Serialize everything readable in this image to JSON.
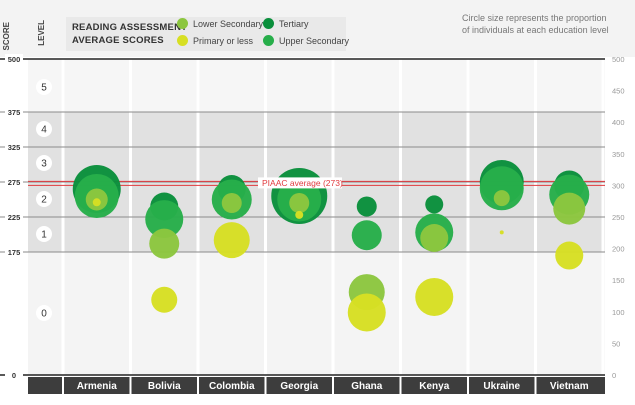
{
  "header": {
    "title_line1": "READING ASSESSMENT",
    "title_line2": "AVERAGE SCORES",
    "note_line1": "Circle size represents the proportion",
    "note_line2": "of individuals at each education level",
    "score_label": "SCORE",
    "level_label": "LEVEL"
  },
  "legend": [
    {
      "label": "Lower Secondary",
      "color": "#8cc63f"
    },
    {
      "label": "Primary or less",
      "color": "#d7df23"
    },
    {
      "label": "Tertiary",
      "color": "#0a8f3c"
    },
    {
      "label": "Upper Secondary",
      "color": "#27ae4a"
    }
  ],
  "chart_data": {
    "type": "scatter",
    "title": "READING ASSESSMENT AVERAGE SCORES",
    "ylabel": "SCORE",
    "ylim": [
      0,
      500
    ],
    "left_ticks": [
      "500",
      "375",
      "325",
      "275",
      "225",
      "175",
      "0"
    ],
    "right_ticks": [
      "500",
      "450",
      "400",
      "350",
      "300",
      "250",
      "200",
      "150",
      "100",
      "50",
      "0"
    ],
    "levels": [
      "5",
      "4",
      "3",
      "2",
      "1",
      "0"
    ],
    "reference_line": {
      "label": "PIAAC average (273)",
      "value": 273,
      "color": "#e03a3e"
    },
    "categories": [
      "Armenia",
      "Bolivia",
      "Colombia",
      "Georgia",
      "Ghana",
      "Kenya",
      "Ukraine",
      "Vietnam"
    ],
    "series": [
      {
        "name": "Tertiary",
        "color": "#0a8f3c",
        "values": [
          265,
          240,
          265,
          255,
          240,
          243,
          275,
          270
        ],
        "sizes": [
          24,
          14,
          14,
          28,
          10,
          9,
          22,
          15
        ]
      },
      {
        "name": "Upper Secondary",
        "color": "#27ae4a",
        "values": [
          255,
          222,
          250,
          250,
          199,
          203,
          266,
          257
        ],
        "sizes": [
          22,
          19,
          20,
          22,
          15,
          19,
          22,
          20
        ]
      },
      {
        "name": "Lower Secondary",
        "color": "#8cc63f",
        "values": [
          250,
          187,
          245,
          245,
          118,
          195,
          252,
          237
        ],
        "sizes": [
          11,
          15,
          10,
          10,
          18,
          14,
          8,
          16
        ]
      },
      {
        "name": "Primary or less",
        "color": "#d7df23",
        "values": [
          246,
          107,
          192,
          228,
          89,
          111,
          203,
          170
        ],
        "sizes": [
          4,
          13,
          18,
          4,
          19,
          19,
          2,
          14
        ]
      }
    ]
  }
}
